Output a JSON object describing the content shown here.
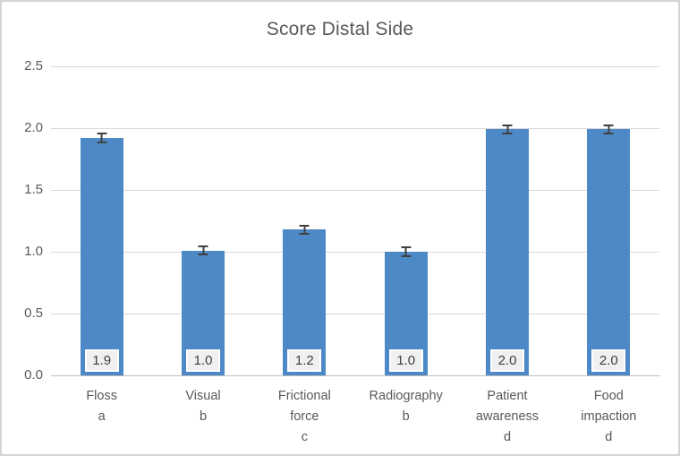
{
  "chart_data": {
    "type": "bar",
    "title": "Score Distal Side",
    "categories": [
      [
        "Floss",
        "a"
      ],
      [
        "Visual",
        "b"
      ],
      [
        "Frictional",
        "force",
        "c"
      ],
      [
        "Radiography",
        "b"
      ],
      [
        "Patient",
        "awareness",
        "d"
      ],
      [
        "Food",
        "impaction",
        "d"
      ]
    ],
    "values": [
      1.92,
      1.01,
      1.18,
      1.0,
      1.99,
      1.99
    ],
    "data_labels": [
      "1.9",
      "1.0",
      "1.2",
      "1.0",
      "2.0",
      "2.0"
    ],
    "error_bars": [
      0.045,
      0.035,
      0.04,
      0.045,
      0.03,
      0.03
    ],
    "y_ticks": [
      "2.5",
      "2.0",
      "1.5",
      "1.0",
      "0.5",
      "0.0"
    ],
    "ylim": [
      0,
      2.5
    ],
    "xlabel": "",
    "ylabel": "",
    "grid": true,
    "legend": false,
    "colors": {
      "bar": "#4d89c7",
      "gridline": "#d9d9d9",
      "baseline": "#bdbdbd",
      "error_bar": "#404040",
      "text": "#595959",
      "label_box_bg": "#f0f0f0",
      "label_box_border": "#ffffff",
      "frame_border": "#d4d4d4"
    }
  }
}
